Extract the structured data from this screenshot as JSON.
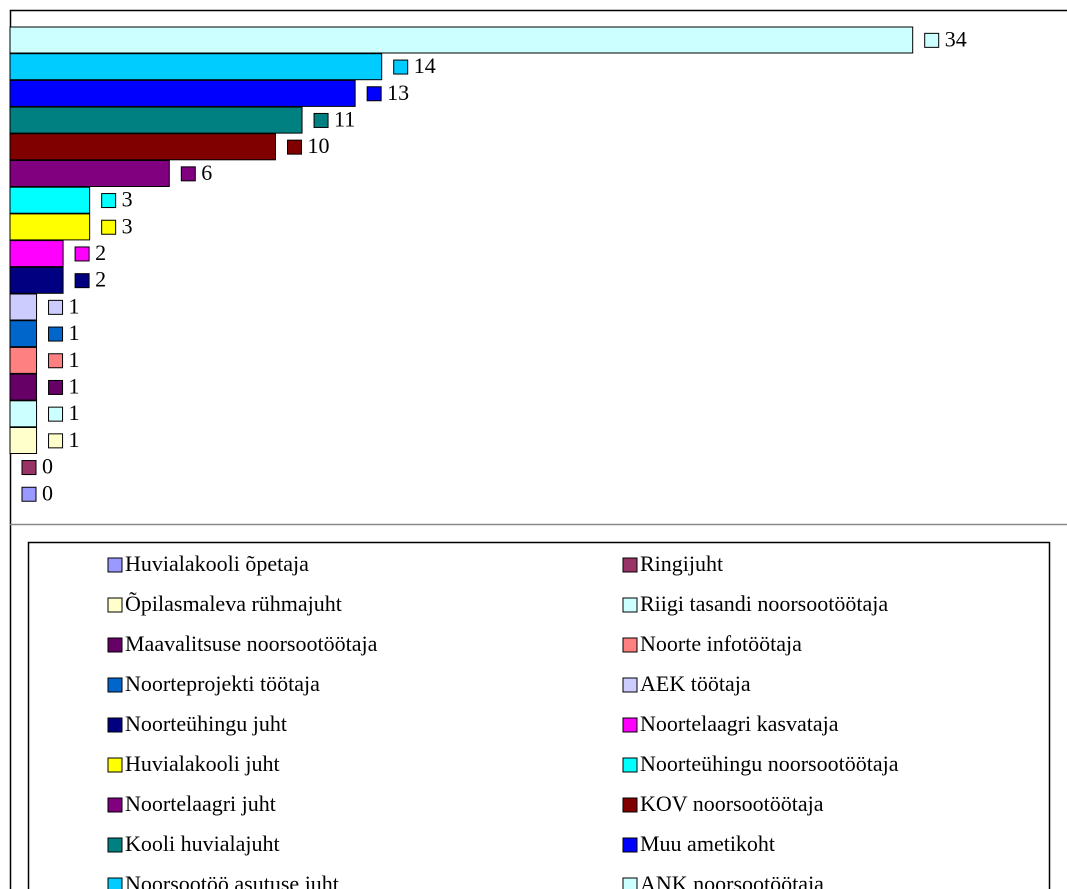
{
  "chart_data": {
    "type": "bar",
    "orientation": "horizontal",
    "xlim": [
      0,
      40
    ],
    "series": [
      {
        "name": "Huvialakooli õpetaja",
        "color": "#9999ff",
        "values": [
          0
        ]
      },
      {
        "name": "Ringijuht",
        "color": "#993366",
        "values": [
          0
        ]
      },
      {
        "name": "Õpilasmaleva rühmajuht",
        "color": "#ffffcc",
        "values": [
          1
        ]
      },
      {
        "name": "Riigi tasandi noorsootöötaja",
        "color": "#ccffff",
        "values": [
          1
        ]
      },
      {
        "name": "Maavalitsuse noorsootöötaja",
        "color": "#660066",
        "values": [
          1
        ]
      },
      {
        "name": "Noorte infotöötaja",
        "color": "#ff8080",
        "values": [
          1
        ]
      },
      {
        "name": "Noorteprojekti töötaja",
        "color": "#0066cc",
        "values": [
          1
        ]
      },
      {
        "name": "AEK töötaja",
        "color": "#ccccff",
        "values": [
          1
        ]
      },
      {
        "name": "Noorteühingu juht",
        "color": "#000080",
        "values": [
          2
        ]
      },
      {
        "name": "Noortelaagri kasvataja",
        "color": "#ff00ff",
        "values": [
          2
        ]
      },
      {
        "name": "Huvialakooli juht",
        "color": "#ffff00",
        "values": [
          3
        ]
      },
      {
        "name": "Noorteühingu noorsootöötaja",
        "color": "#00ffff",
        "values": [
          3
        ]
      },
      {
        "name": "Noortelaagri juht",
        "color": "#800080",
        "values": [
          6
        ]
      },
      {
        "name": "KOV noorsootöötaja",
        "color": "#800000",
        "values": [
          10
        ]
      },
      {
        "name": "Kooli huvialajuht",
        "color": "#008080",
        "values": [
          11
        ]
      },
      {
        "name": "Muu ametikoht",
        "color": "#0000ff",
        "values": [
          13
        ]
      },
      {
        "name": "Noorsootöö asutuse juht",
        "color": "#00ccff",
        "values": [
          14
        ]
      },
      {
        "name": "ANK noorsootöötaja",
        "color": "#ccffff",
        "values": [
          34
        ]
      }
    ],
    "legend": "bottom"
  }
}
